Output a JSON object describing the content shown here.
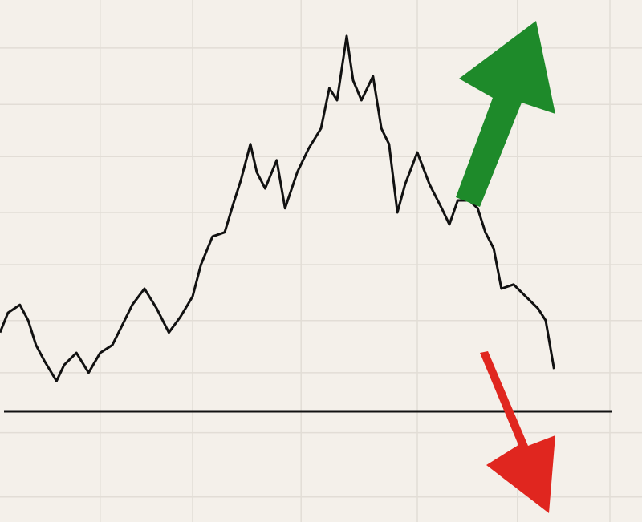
{
  "chart_data": {
    "type": "line",
    "x": [
      0,
      1.25,
      3.1,
      4.4,
      5.6,
      6.9,
      8.8,
      10,
      11.9,
      13.8,
      15.6,
      17.5,
      19.4,
      20.6,
      22.5,
      24.4,
      26.3,
      28.1,
      30,
      31.3,
      33.1,
      35,
      36.3,
      37.5,
      39,
      40,
      41.3,
      43.1,
      44.4,
      46.3,
      48.1,
      50,
      51.3,
      52.5,
      54,
      55,
      56.3,
      58.1,
      59.4,
      60.6,
      61.9,
      63.1,
      65,
      66.9,
      68.8,
      70,
      71.3,
      73.1,
      74.4,
      75.6,
      76.9,
      78.1,
      80,
      81.9,
      83.8,
      85,
      86.3
    ],
    "values": [
      36.3,
      40.1,
      41.6,
      38.6,
      33.9,
      30.9,
      27.0,
      30.1,
      32.4,
      28.6,
      32.4,
      33.9,
      38.6,
      41.6,
      44.7,
      40.9,
      36.3,
      39.3,
      43.2,
      49.3,
      54.7,
      55.5,
      60.8,
      65.4,
      72.4,
      67.0,
      63.9,
      69.3,
      60.1,
      67.0,
      71.6,
      75.4,
      83.1,
      80.8,
      93.1,
      84.6,
      80.8,
      85.4,
      75.4,
      72.4,
      59.3,
      64.7,
      70.8,
      64.7,
      60.1,
      57.0,
      61.6,
      61.6,
      60.1,
      55.5,
      52.4,
      44.7,
      45.5,
      43.2,
      40.9,
      38.6,
      29.3
    ],
    "color": "#111111",
    "xlim": [
      0,
      100
    ],
    "ylim": [
      0,
      100
    ],
    "xticks": [
      15.6,
      30,
      46.9,
      65,
      80.6,
      95
    ],
    "yticks": [
      4.8,
      17.1,
      28.6,
      38.6,
      49.3,
      59.3,
      70.0,
      80.0,
      90.8
    ],
    "grid": true,
    "baseline": 21.2
  }
}
